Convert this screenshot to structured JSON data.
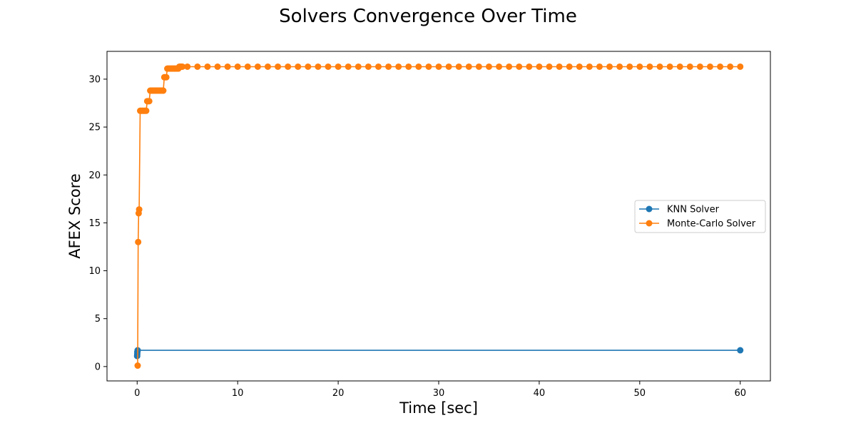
{
  "chart_data": {
    "type": "line",
    "title": "Solvers Convergence Over Time",
    "xlabel": "Time [sec]",
    "ylabel": "AFEX Score",
    "xlim": [
      -3,
      63
    ],
    "ylim": [
      -1.5,
      32.9
    ],
    "xticks": [
      0,
      10,
      20,
      30,
      40,
      50,
      60
    ],
    "yticks": [
      0,
      5,
      10,
      15,
      20,
      25,
      30
    ],
    "grid": false,
    "legend_position": "center-right",
    "markers": true,
    "series": [
      {
        "name": "KNN Solver",
        "color": "#1f77b4",
        "x": [
          0,
          0.01,
          0.02,
          0.03,
          0.05,
          60
        ],
        "y": [
          1.1,
          1.3,
          1.5,
          1.6,
          1.7,
          1.7
        ]
      },
      {
        "name": "Monte-Carlo Solver",
        "color": "#ff7f0e",
        "x": [
          0.05,
          0.1,
          0.15,
          0.2,
          0.3,
          0.4,
          0.5,
          0.6,
          0.7,
          0.8,
          0.9,
          1.0,
          1.1,
          1.2,
          1.3,
          1.4,
          1.5,
          1.6,
          1.7,
          1.8,
          1.9,
          2.0,
          2.1,
          2.2,
          2.3,
          2.4,
          2.5,
          2.6,
          2.7,
          2.8,
          2.9,
          3.0,
          3.1,
          3.2,
          3.3,
          3.4,
          3.5,
          3.6,
          3.7,
          3.8,
          3.9,
          4.0,
          4.1,
          4.2,
          4.3,
          4.4,
          4.5,
          5,
          6,
          7,
          8,
          9,
          10,
          11,
          12,
          13,
          14,
          15,
          16,
          17,
          18,
          19,
          20,
          21,
          22,
          23,
          24,
          25,
          26,
          27,
          28,
          29,
          30,
          31,
          32,
          33,
          34,
          35,
          36,
          37,
          38,
          39,
          40,
          41,
          42,
          43,
          44,
          45,
          46,
          47,
          48,
          49,
          50,
          51,
          52,
          53,
          54,
          55,
          56,
          57,
          58,
          59,
          60
        ],
        "y": [
          0.1,
          13.0,
          16.0,
          16.4,
          26.7,
          26.7,
          26.7,
          26.7,
          26.7,
          26.7,
          26.7,
          27.7,
          27.7,
          27.7,
          28.8,
          28.8,
          28.8,
          28.8,
          28.8,
          28.8,
          28.8,
          28.8,
          28.8,
          28.8,
          28.8,
          28.8,
          28.8,
          28.8,
          30.2,
          30.2,
          30.2,
          31.1,
          31.1,
          31.1,
          31.1,
          31.1,
          31.1,
          31.1,
          31.1,
          31.1,
          31.1,
          31.1,
          31.1,
          31.3,
          31.3,
          31.3,
          31.3,
          31.3,
          31.3,
          31.3,
          31.3,
          31.3,
          31.3,
          31.3,
          31.3,
          31.3,
          31.3,
          31.3,
          31.3,
          31.3,
          31.3,
          31.3,
          31.3,
          31.3,
          31.3,
          31.3,
          31.3,
          31.3,
          31.3,
          31.3,
          31.3,
          31.3,
          31.3,
          31.3,
          31.3,
          31.3,
          31.3,
          31.3,
          31.3,
          31.3,
          31.3,
          31.3,
          31.3,
          31.3,
          31.3,
          31.3,
          31.3,
          31.3,
          31.3,
          31.3,
          31.3,
          31.3,
          31.3,
          31.3,
          31.3,
          31.3,
          31.3,
          31.3,
          31.3,
          31.3,
          31.3,
          31.3,
          31.3
        ]
      }
    ]
  }
}
